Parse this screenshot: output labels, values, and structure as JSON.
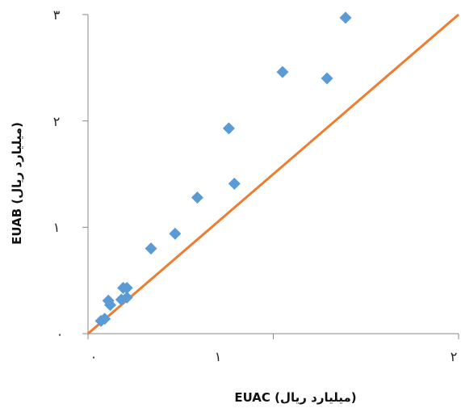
{
  "chart_data": {
    "type": "scatter",
    "title": "",
    "xlabel": "EUAC (میلیارد ریال)",
    "ylabel": "EUAB (میلیارد ریال)",
    "xlim": [
      0,
      2
    ],
    "ylim": [
      0,
      3
    ],
    "x_ticks": [
      0,
      1,
      2
    ],
    "y_ticks": [
      0,
      1,
      2,
      3
    ],
    "x_tick_labels": [
      "۰",
      "۱",
      "۲"
    ],
    "y_tick_labels": [
      "۰",
      "۱",
      "۲",
      "۳"
    ],
    "grid": false,
    "colors": {
      "points": "#5b9bd5",
      "line": "#ed7d31",
      "axis": "#888888"
    },
    "series": [
      {
        "type": "scatter",
        "marker": "diamond",
        "points": [
          {
            "x": 0.07,
            "y": 0.12
          },
          {
            "x": 0.09,
            "y": 0.14
          },
          {
            "x": 0.11,
            "y": 0.31
          },
          {
            "x": 0.12,
            "y": 0.27
          },
          {
            "x": 0.18,
            "y": 0.32
          },
          {
            "x": 0.19,
            "y": 0.43
          },
          {
            "x": 0.21,
            "y": 0.34
          },
          {
            "x": 0.21,
            "y": 0.43
          },
          {
            "x": 0.34,
            "y": 0.8
          },
          {
            "x": 0.47,
            "y": 0.94
          },
          {
            "x": 0.59,
            "y": 1.28
          },
          {
            "x": 0.76,
            "y": 1.93
          },
          {
            "x": 0.79,
            "y": 1.41
          },
          {
            "x": 1.05,
            "y": 2.46
          },
          {
            "x": 1.29,
            "y": 2.4
          },
          {
            "x": 1.39,
            "y": 2.97
          }
        ]
      },
      {
        "type": "line",
        "points": [
          {
            "x": 0,
            "y": 0
          },
          {
            "x": 2,
            "y": 3
          }
        ]
      }
    ]
  }
}
